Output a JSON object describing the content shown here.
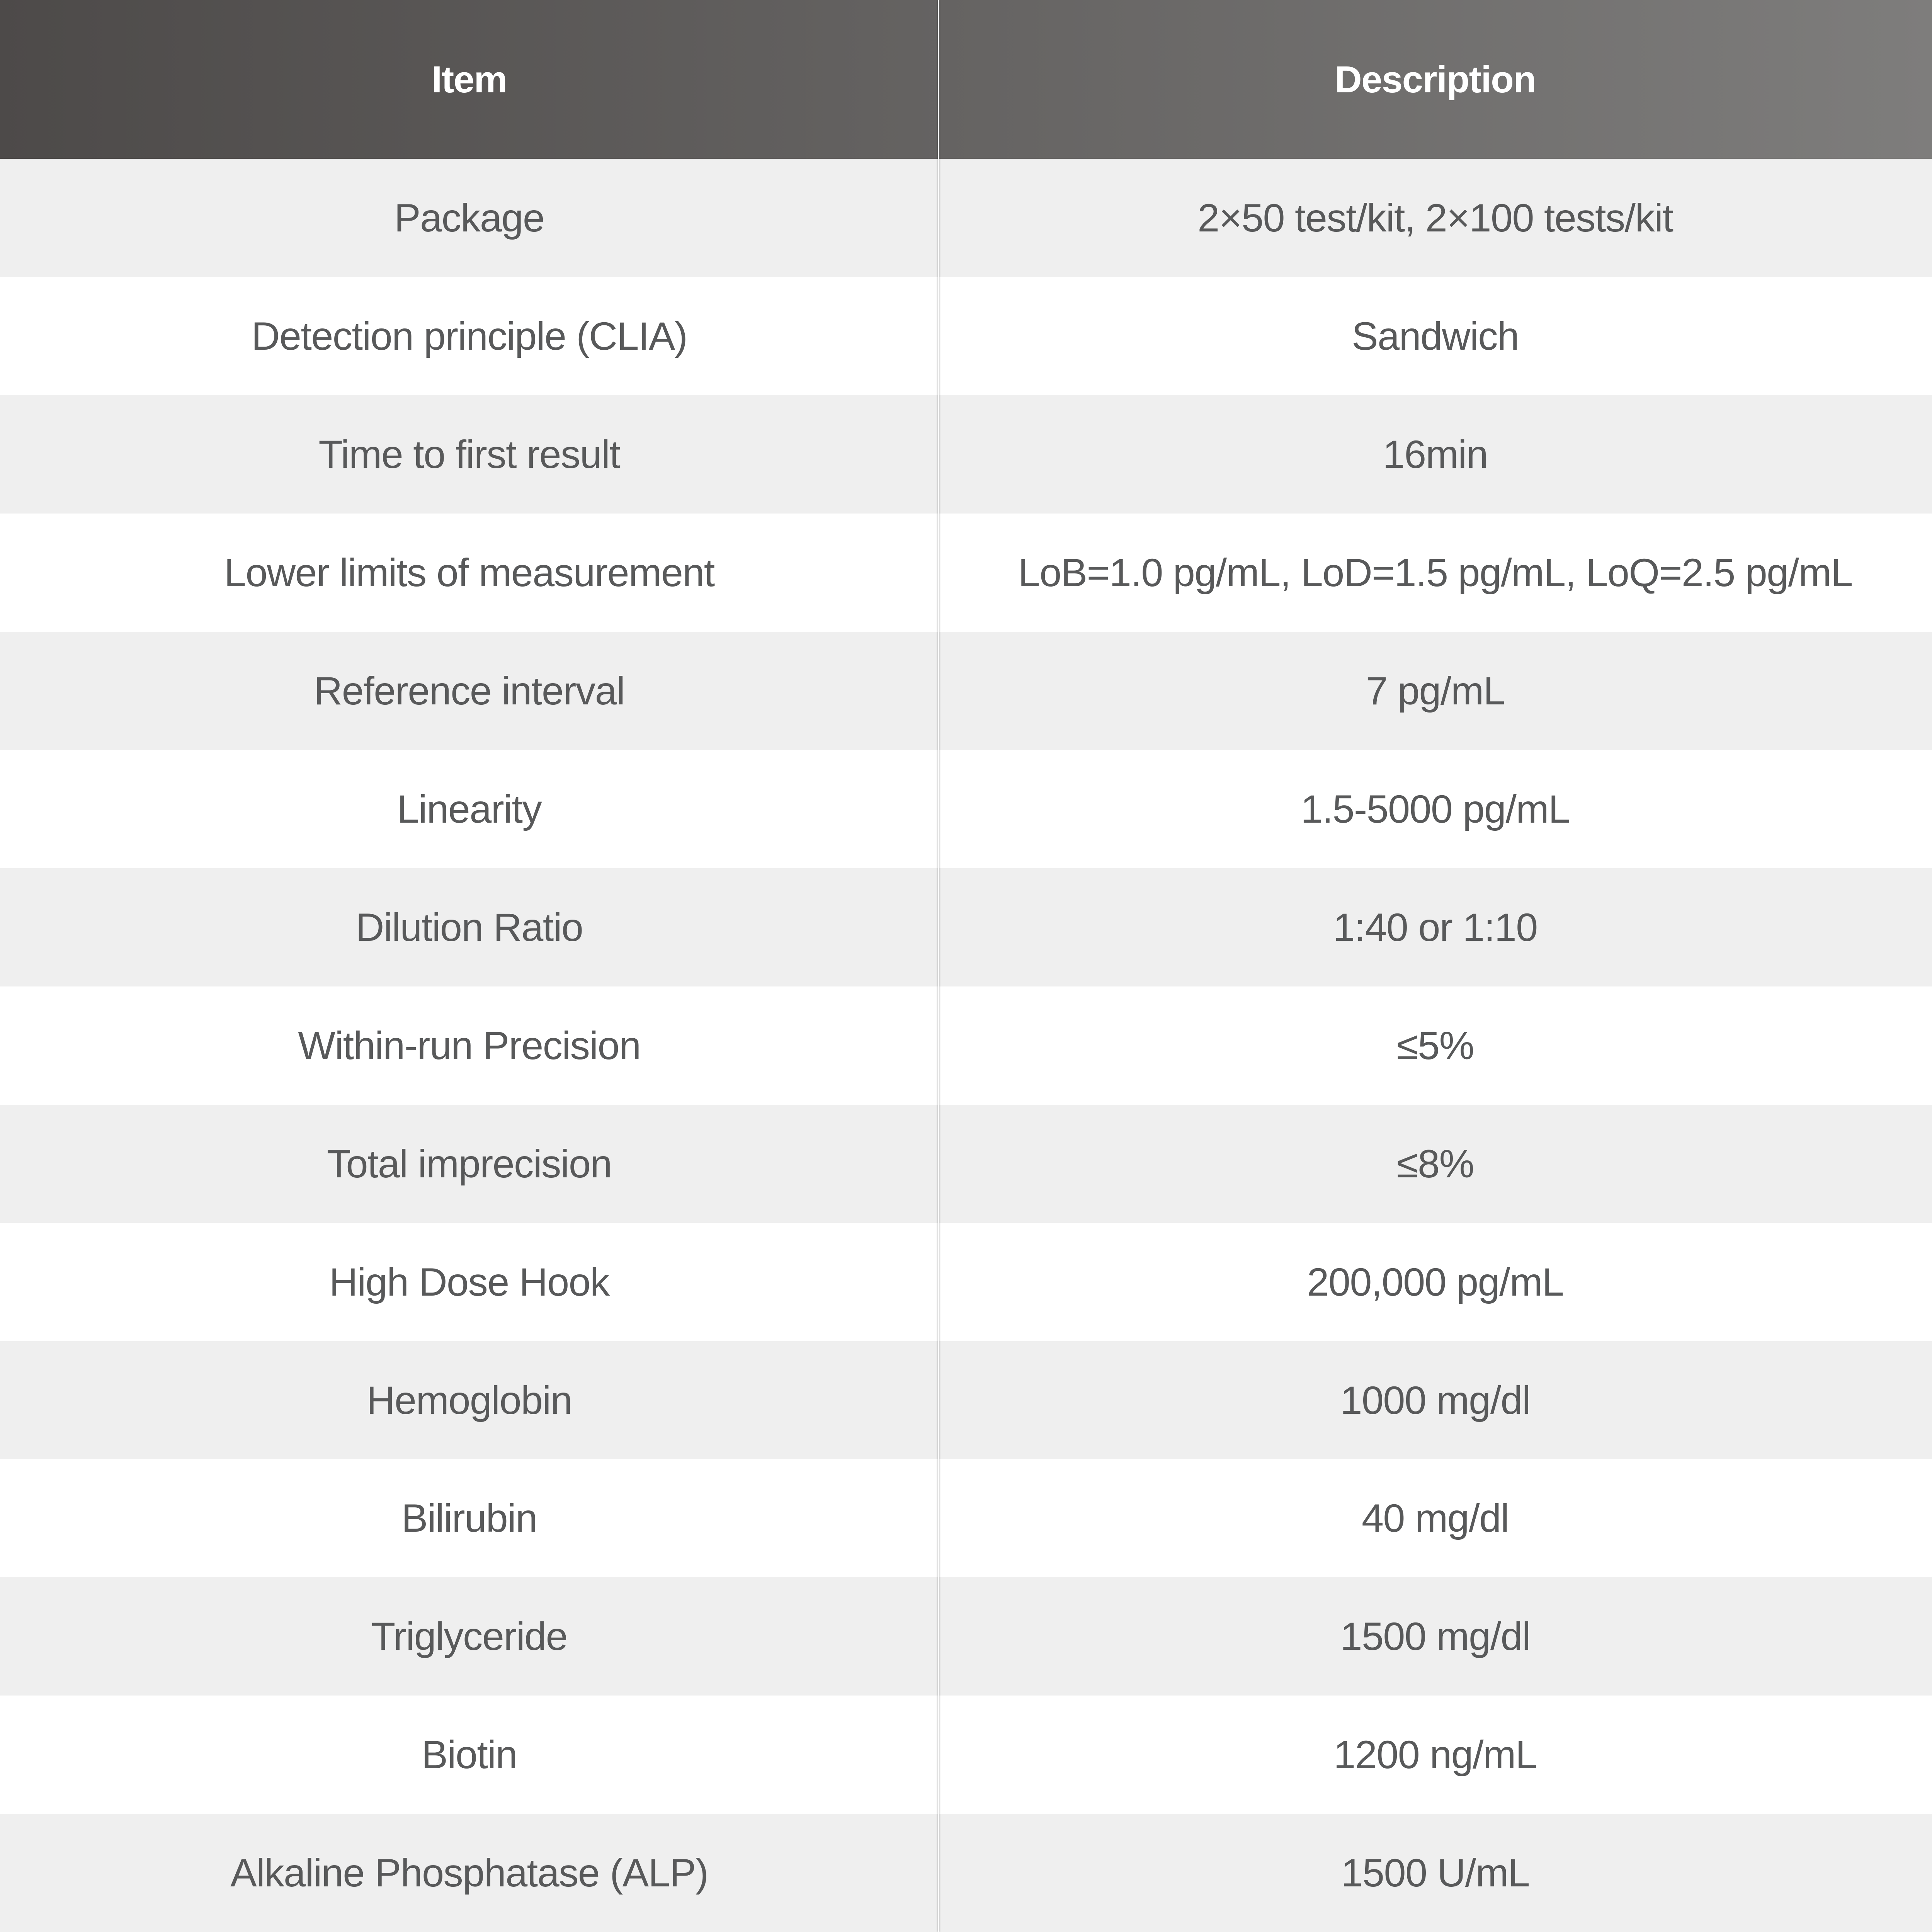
{
  "table": {
    "columns": [
      "Item",
      "Description"
    ],
    "rows": [
      {
        "item": "Package",
        "description": "2×50 test/kit, 2×100 tests/kit"
      },
      {
        "item": "Detection principle (CLIA)",
        "description": "Sandwich"
      },
      {
        "item": "Time to first result",
        "description": "16min"
      },
      {
        "item": "Lower limits of measurement",
        "description": "LoB=1.0 pg/mL, LoD=1.5 pg/mL, LoQ=2.5 pg/mL"
      },
      {
        "item": "Reference interval",
        "description": "7 pg/mL"
      },
      {
        "item": "Linearity",
        "description": "1.5-5000 pg/mL"
      },
      {
        "item": "Dilution Ratio",
        "description": "1:40 or 1:10"
      },
      {
        "item": "Within-run Precision",
        "description": "≤5%"
      },
      {
        "item": "Total imprecision",
        "description": "≤8%"
      },
      {
        "item": "High Dose Hook",
        "description": "200,000 pg/mL"
      },
      {
        "item": "Hemoglobin",
        "description": "1000 mg/dl"
      },
      {
        "item": "Bilirubin",
        "description": "40 mg/dl"
      },
      {
        "item": "Triglyceride",
        "description": "1500 mg/dl"
      },
      {
        "item": "Biotin",
        "description": "1200 ng/mL"
      },
      {
        "item": "Alkaline Phosphatase (ALP)",
        "description": "1500 U/mL"
      }
    ],
    "colors": {
      "header_gradient_left": "#4d4a49",
      "header_gradient_right": "#7e7d7c",
      "header_text": "#ffffff",
      "row_alt_background": "#efefef",
      "row_background": "#ffffff",
      "cell_text": "#58595a",
      "divider": "#ffffff"
    }
  }
}
